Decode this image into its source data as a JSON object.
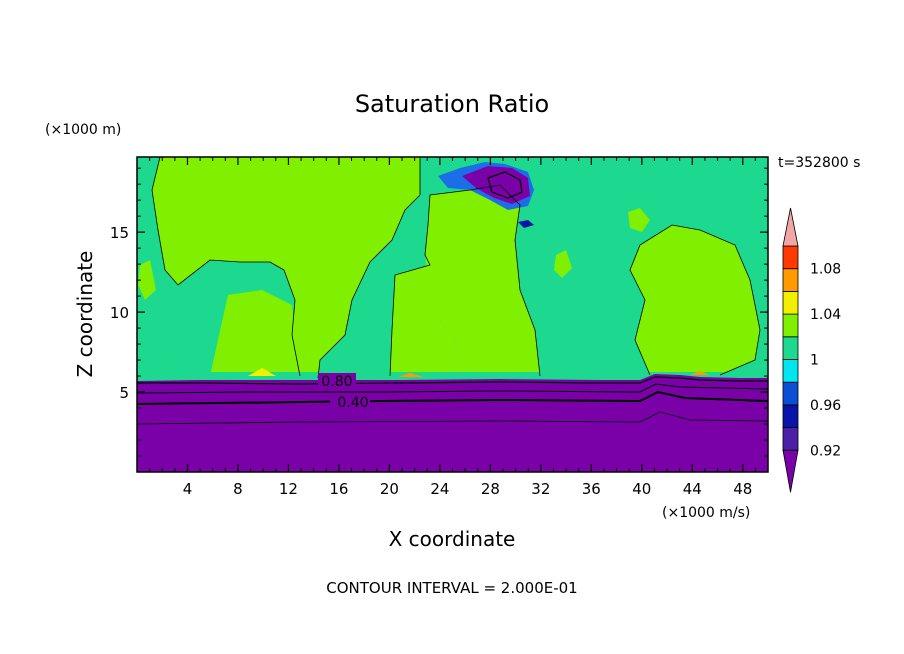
{
  "chart_data": {
    "type": "heatmap",
    "title": "Saturation Ratio",
    "xlabel": "X coordinate",
    "ylabel": "Z coordinate",
    "x_unit": "(×1000 m/s)",
    "y_unit": "(×1000 m)",
    "time_label": "t=352800 s",
    "footer": "CONTOUR INTERVAL = 2.000E-01",
    "xlim": [
      0,
      50
    ],
    "ylim": [
      0,
      19.7
    ],
    "x_ticks": [
      4,
      8,
      12,
      16,
      20,
      24,
      28,
      32,
      36,
      40,
      44,
      48
    ],
    "y_ticks": [
      5,
      10,
      15
    ],
    "contour_labels": [
      {
        "text": "0.80",
        "x": 15.5,
        "y": 5.6
      },
      {
        "text": "0.40",
        "x": 17.0,
        "y": 4.4
      }
    ],
    "colorbar": {
      "labels": [
        "1.08",
        "1.04",
        "1",
        "0.96",
        "0.92"
      ],
      "colors": [
        "#7a00a8",
        "#4b1fa6",
        "#0a14a8",
        "#0a4fd6",
        "#00e6f0",
        "#1cd98f",
        "#80f000",
        "#f0f000",
        "#ff9a00",
        "#ff3a00",
        "#f3a6a6"
      ]
    },
    "regions": {
      "dry_layer_top": 6.0,
      "dry_layer_color": "#7a00a8",
      "background_color": "#1cd98f",
      "supersaturated_color": "#80f000"
    }
  }
}
